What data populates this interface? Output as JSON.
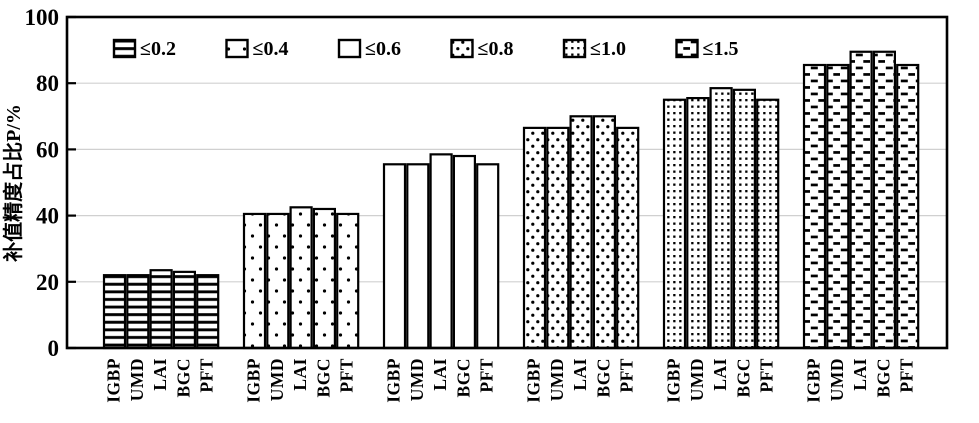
{
  "chart_data": {
    "type": "bar",
    "title": "",
    "ylabel": "补值精度占比P/%",
    "xlabel": "",
    "ylim": [
      0,
      100
    ],
    "yticks": [
      0,
      20,
      40,
      60,
      80,
      100
    ],
    "grid": true,
    "legend_position": "top-inside",
    "categories": [
      "IGBP",
      "UMD",
      "LAI",
      "BGC",
      "PFT"
    ],
    "series": [
      {
        "name": "≤0.2",
        "pattern": "hlines",
        "values": [
          22,
          22,
          23.5,
          23,
          22
        ]
      },
      {
        "name": "≤0.4",
        "pattern": "dots-sparse",
        "values": [
          40.5,
          40.5,
          42.5,
          42,
          40.5
        ]
      },
      {
        "name": "≤0.6",
        "pattern": "plain",
        "values": [
          55.5,
          55.5,
          58.5,
          58,
          55.5
        ]
      },
      {
        "name": "≤0.8",
        "pattern": "dots",
        "values": [
          66.5,
          66.5,
          70,
          70,
          66.5
        ]
      },
      {
        "name": "≤1.0",
        "pattern": "dots-dense",
        "values": [
          75,
          75.5,
          78.5,
          78,
          75
        ]
      },
      {
        "name": "≤1.5",
        "pattern": "dashes",
        "values": [
          85.5,
          85.5,
          89.5,
          89.5,
          85.5
        ]
      }
    ],
    "colors": {
      "bar_fill": "#ffffff",
      "bar_stroke": "#000000",
      "gridline": "#d0d0d0",
      "axis": "#000000"
    }
  }
}
